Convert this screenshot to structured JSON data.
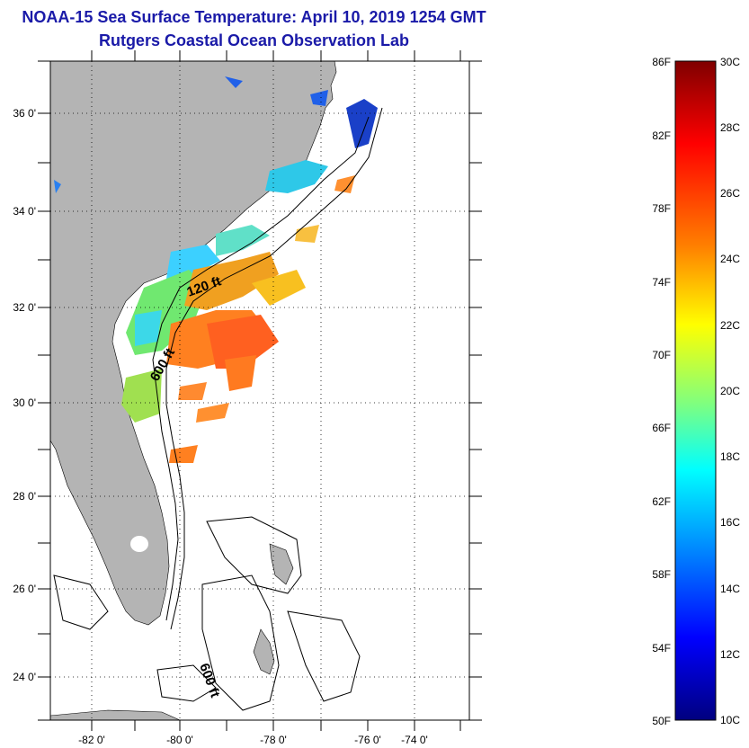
{
  "header": {
    "title": "NOAA-15 Sea Surface Temperature:  April 10, 2019 1254 GMT",
    "subtitle": "Rutgers Coastal Ocean Observation Lab"
  },
  "map": {
    "lat_labels": [
      "36 0'",
      "34 0'",
      "32 0'",
      "30 0'",
      "28 0'",
      "26 0'",
      "24 0'"
    ],
    "lon_labels": [
      "-82 0'",
      "-80 0'",
      "-78 0'",
      "-76 0'",
      "-74 0'"
    ],
    "contour_labels": [
      "120 ft",
      "600 ft",
      "600 ft"
    ],
    "colors": {
      "land": "#b4b4b4",
      "ocean": "#ffffff",
      "grid": "#000000"
    }
  },
  "colorbar": {
    "f_labels": [
      "86F",
      "82F",
      "78F",
      "74F",
      "70F",
      "66F",
      "62F",
      "58F",
      "54F",
      "50F"
    ],
    "c_labels": [
      "30C",
      "28C",
      "26C",
      "24C",
      "22C",
      "20C",
      "18C",
      "16C",
      "14C",
      "12C",
      "10C"
    ],
    "min_c": 10,
    "max_c": 30,
    "stops": [
      "#7f0000",
      "#ff0000",
      "#ff7f00",
      "#ffff00",
      "#7fff7f",
      "#00ffff",
      "#007fff",
      "#0000ff",
      "#00007f"
    ]
  }
}
